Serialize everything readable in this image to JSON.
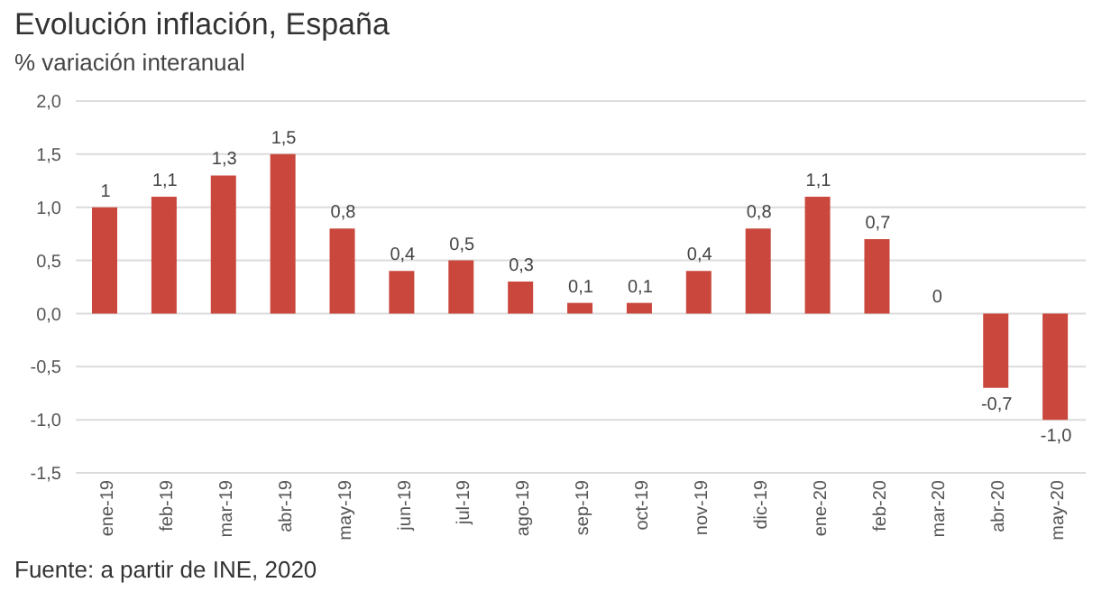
{
  "chart_data": {
    "type": "bar",
    "title": "Evolución inflación, España",
    "subtitle": "% variación interanual",
    "categories": [
      "ene-19",
      "feb-19",
      "mar-19",
      "abr-19",
      "may-19",
      "jun-19",
      "jul-19",
      "ago-19",
      "sep-19",
      "oct-19",
      "nov-19",
      "dic-19",
      "ene-20",
      "feb-20",
      "mar-20",
      "abr-20",
      "may-20"
    ],
    "values": [
      1,
      1.1,
      1.3,
      1.5,
      0.8,
      0.4,
      0.5,
      0.3,
      0.1,
      0.1,
      0.4,
      0.8,
      1.1,
      0.7,
      0,
      -0.7,
      -1.0
    ],
    "value_labels": [
      "1",
      "1,1",
      "1,3",
      "1,5",
      "0,8",
      "0,4",
      "0,5",
      "0,3",
      "0,1",
      "0,1",
      "0,4",
      "0,8",
      "1,1",
      "0,7",
      "0",
      "-0,7",
      "-1,0"
    ],
    "color": "#c9473c",
    "ylim": [
      -1.5,
      2.0
    ],
    "yticks": [
      {
        "value": -1.5,
        "label": "-1,5"
      },
      {
        "value": -1.0,
        "label": "-1,0"
      },
      {
        "value": -0.5,
        "label": "-0,5"
      },
      {
        "value": 0,
        "label": "0,0"
      },
      {
        "value": 0.5,
        "label": "0,5"
      },
      {
        "value": 1.0,
        "label": "1,0"
      },
      {
        "value": 1.5,
        "label": "1,5"
      },
      {
        "value": 2.0,
        "label": "2,0"
      }
    ],
    "grid": "y",
    "annotations": [
      "Fuente: a partir de INE, 2020"
    ]
  }
}
